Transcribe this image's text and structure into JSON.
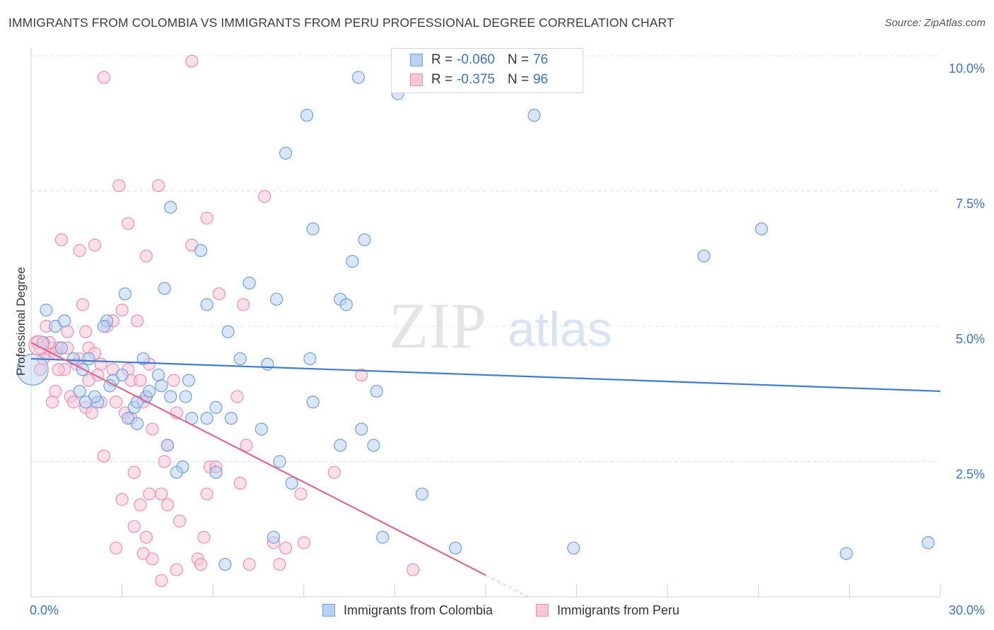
{
  "header": {
    "title": "IMMIGRANTS FROM COLOMBIA VS IMMIGRANTS FROM PERU PROFESSIONAL DEGREE CORRELATION CHART",
    "source": "Source: ZipAtlas.com"
  },
  "watermark": {
    "zip": "ZIP",
    "atlas": "atlas"
  },
  "legend": {
    "rows": [
      {
        "r_label": "R =",
        "r_value": "-0.060",
        "n_label": "N =",
        "n_value": "76",
        "color": "#6f9fe0"
      },
      {
        "r_label": "R =",
        "r_value": "-0.375",
        "n_label": "N =",
        "n_value": "96",
        "color": "#ee8fb0"
      }
    ]
  },
  "chart_data": {
    "type": "scatter",
    "title": "IMMIGRANTS FROM COLOMBIA VS IMMIGRANTS FROM PERU PROFESSIONAL DEGREE CORRELATION CHART",
    "xlabel": "",
    "ylabel": "Professional Degree",
    "xlim": [
      0,
      30
    ],
    "ylim": [
      0,
      10
    ],
    "x_tick_labels": [
      "0.0%",
      "30.0%"
    ],
    "y_ticks": [
      2.5,
      5.0,
      7.5,
      10.0
    ],
    "y_tick_labels": [
      "2.5%",
      "5.0%",
      "7.5%",
      "10.0%"
    ],
    "grid": true,
    "legend_position": "bottom-center",
    "series": [
      {
        "name": "Immigrants from Colombia",
        "color": "#6f9fe0",
        "fill": "#b9d1f2",
        "trend": {
          "x0": 0,
          "y0": 4.4,
          "x1": 30,
          "y1": 3.8,
          "color": "#3f7ad2"
        },
        "points": [
          [
            0.5,
            5.3
          ],
          [
            0.4,
            4.7
          ],
          [
            0.8,
            5.0
          ],
          [
            1.1,
            5.1
          ],
          [
            1.0,
            4.6
          ],
          [
            1.9,
            4.4
          ],
          [
            1.4,
            4.4
          ],
          [
            1.7,
            4.2
          ],
          [
            2.5,
            5.1
          ],
          [
            2.4,
            5.0
          ],
          [
            3.1,
            5.6
          ],
          [
            3.0,
            4.1
          ],
          [
            3.7,
            4.4
          ],
          [
            4.4,
            5.7
          ],
          [
            4.6,
            7.2
          ],
          [
            4.2,
            4.1
          ],
          [
            4.3,
            3.9
          ],
          [
            3.8,
            3.7
          ],
          [
            3.9,
            3.8
          ],
          [
            2.2,
            3.6
          ],
          [
            2.1,
            3.7
          ],
          [
            1.6,
            3.8
          ],
          [
            1.8,
            3.6
          ],
          [
            3.4,
            3.5
          ],
          [
            3.2,
            3.3
          ],
          [
            3.5,
            3.2
          ],
          [
            5.6,
            6.4
          ],
          [
            5.8,
            5.4
          ],
          [
            6.5,
            4.9
          ],
          [
            5.2,
            4.0
          ],
          [
            5.1,
            3.7
          ],
          [
            5.3,
            3.3
          ],
          [
            5.8,
            3.3
          ],
          [
            6.1,
            3.5
          ],
          [
            6.6,
            3.3
          ],
          [
            7.2,
            5.8
          ],
          [
            6.9,
            4.4
          ],
          [
            7.8,
            4.3
          ],
          [
            8.1,
            5.5
          ],
          [
            9.2,
            4.4
          ],
          [
            8.4,
            8.2
          ],
          [
            9.1,
            8.9
          ],
          [
            9.3,
            6.8
          ],
          [
            10.2,
            5.5
          ],
          [
            10.4,
            5.4
          ],
          [
            10.6,
            6.2
          ],
          [
            10.8,
            9.6
          ],
          [
            11.0,
            6.6
          ],
          [
            11.4,
            3.8
          ],
          [
            10.9,
            3.1
          ],
          [
            11.3,
            2.8
          ],
          [
            10.2,
            2.8
          ],
          [
            7.6,
            3.1
          ],
          [
            8.2,
            2.5
          ],
          [
            8.6,
            2.1
          ],
          [
            9.3,
            3.6
          ],
          [
            4.5,
            2.8
          ],
          [
            5.0,
            2.4
          ],
          [
            4.8,
            2.3
          ],
          [
            6.1,
            2.3
          ],
          [
            12.1,
            9.3
          ],
          [
            16.6,
            8.9
          ],
          [
            12.9,
            1.9
          ],
          [
            11.6,
            1.1
          ],
          [
            14.0,
            0.9
          ],
          [
            17.9,
            0.9
          ],
          [
            22.2,
            6.3
          ],
          [
            24.1,
            6.8
          ],
          [
            26.9,
            0.8
          ],
          [
            29.6,
            1.0
          ],
          [
            8.0,
            1.1
          ],
          [
            6.4,
            0.6
          ],
          [
            3.5,
            3.6
          ],
          [
            4.6,
            3.7
          ],
          [
            2.7,
            4.0
          ],
          [
            2.6,
            3.9
          ]
        ]
      },
      {
        "name": "Immigrants from Peru",
        "color": "#ee8fb0",
        "fill": "#f9c6d7",
        "trend": {
          "x0": 0,
          "y0": 4.7,
          "x1": 15.0,
          "y1": 0.4,
          "dash_x1": 16.4,
          "dash_y1": 0.0,
          "color": "#e0668f"
        },
        "points": [
          [
            0.2,
            4.7
          ],
          [
            0.3,
            4.6
          ],
          [
            0.6,
            4.5
          ],
          [
            0.7,
            4.6
          ],
          [
            0.9,
            4.6
          ],
          [
            0.4,
            4.4
          ],
          [
            0.8,
            4.5
          ],
          [
            1.2,
            4.9
          ],
          [
            0.5,
            5.0
          ],
          [
            0.3,
            4.2
          ],
          [
            1.1,
            4.2
          ],
          [
            1.6,
            4.4
          ],
          [
            1.9,
            4.6
          ],
          [
            2.1,
            4.5
          ],
          [
            2.3,
            4.3
          ],
          [
            2.2,
            4.1
          ],
          [
            1.8,
            4.9
          ],
          [
            2.5,
            5.0
          ],
          [
            2.7,
            5.1
          ],
          [
            1.7,
            5.4
          ],
          [
            3.0,
            5.3
          ],
          [
            3.5,
            5.1
          ],
          [
            3.2,
            4.2
          ],
          [
            3.9,
            4.3
          ],
          [
            3.3,
            4.0
          ],
          [
            3.6,
            4.0
          ],
          [
            1.0,
            6.6
          ],
          [
            1.6,
            6.4
          ],
          [
            2.1,
            6.5
          ],
          [
            2.4,
            9.6
          ],
          [
            2.9,
            7.6
          ],
          [
            3.2,
            6.9
          ],
          [
            4.2,
            7.6
          ],
          [
            3.8,
            6.3
          ],
          [
            5.3,
            6.5
          ],
          [
            5.8,
            7.0
          ],
          [
            7.7,
            7.4
          ],
          [
            6.2,
            5.6
          ],
          [
            7.0,
            5.4
          ],
          [
            0.8,
            3.8
          ],
          [
            0.7,
            3.6
          ],
          [
            1.3,
            3.7
          ],
          [
            1.4,
            3.6
          ],
          [
            1.8,
            3.5
          ],
          [
            2.3,
            3.6
          ],
          [
            2.0,
            3.4
          ],
          [
            3.1,
            3.4
          ],
          [
            3.3,
            3.3
          ],
          [
            3.8,
            3.7
          ],
          [
            4.0,
            3.1
          ],
          [
            4.7,
            4.0
          ],
          [
            4.8,
            3.4
          ],
          [
            6.8,
            3.7
          ],
          [
            4.5,
            2.8
          ],
          [
            4.4,
            2.5
          ],
          [
            2.4,
            2.6
          ],
          [
            3.4,
            2.3
          ],
          [
            3.0,
            1.8
          ],
          [
            4.3,
            1.9
          ],
          [
            3.9,
            1.9
          ],
          [
            3.6,
            1.7
          ],
          [
            4.5,
            1.7
          ],
          [
            5.8,
            1.9
          ],
          [
            5.9,
            2.4
          ],
          [
            6.1,
            2.4
          ],
          [
            6.9,
            2.1
          ],
          [
            7.1,
            2.8
          ],
          [
            8.9,
            1.9
          ],
          [
            3.4,
            1.3
          ],
          [
            3.8,
            1.1
          ],
          [
            4.9,
            1.4
          ],
          [
            5.7,
            1.1
          ],
          [
            2.8,
            0.9
          ],
          [
            3.7,
            0.8
          ],
          [
            4.0,
            0.7
          ],
          [
            4.8,
            0.5
          ],
          [
            5.5,
            0.7
          ],
          [
            5.6,
            0.6
          ],
          [
            7.2,
            0.6
          ],
          [
            8.2,
            0.6
          ],
          [
            8.0,
            1.0
          ],
          [
            8.4,
            0.9
          ],
          [
            9.0,
            1.0
          ],
          [
            4.3,
            0.3
          ],
          [
            12.6,
            0.5
          ],
          [
            10.0,
            2.3
          ],
          [
            10.9,
            4.1
          ],
          [
            5.3,
            9.9
          ],
          [
            0.9,
            4.2
          ],
          [
            1.5,
            4.3
          ],
          [
            1.9,
            4.0
          ],
          [
            2.8,
            3.6
          ],
          [
            3.7,
            3.6
          ],
          [
            2.7,
            4.2
          ],
          [
            1.2,
            4.6
          ],
          [
            0.6,
            4.7
          ]
        ]
      }
    ]
  }
}
